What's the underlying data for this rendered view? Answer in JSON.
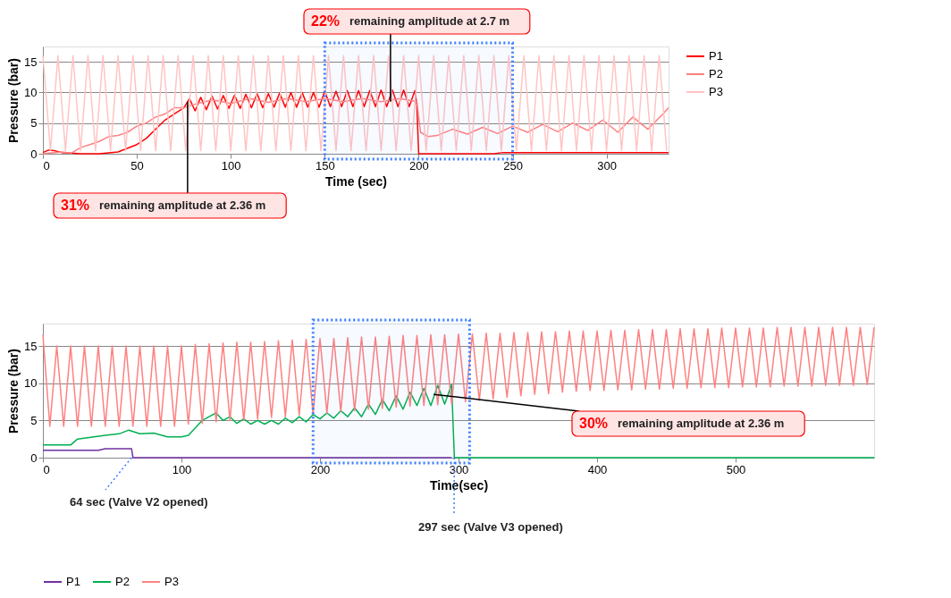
{
  "chart_data": [
    {
      "type": "line",
      "xlabel": "Time (sec)",
      "ylabel": "Pressure (bar)",
      "xlim": [
        0,
        333
      ],
      "ylim": [
        0,
        17.5
      ],
      "xticks": [
        0,
        50,
        100,
        150,
        200,
        250,
        300
      ],
      "yticks": [
        0,
        5,
        10,
        15
      ],
      "grid": "y",
      "legend": "right",
      "series": [
        {
          "name": "P1",
          "color": "#ff0000",
          "x": [
            0,
            3,
            6,
            10,
            15,
            20,
            30,
            40,
            50,
            55,
            60,
            65,
            70,
            75,
            78,
            81,
            84,
            87,
            90,
            93,
            96,
            99,
            102,
            105,
            108,
            111,
            114,
            117,
            120,
            123,
            126,
            129,
            132,
            135,
            138,
            141,
            144,
            147,
            150,
            153,
            156,
            159,
            162,
            165,
            168,
            171,
            174,
            177,
            180,
            183,
            186,
            189,
            192,
            195,
            198,
            199,
            200,
            240,
            245,
            333
          ],
          "values": [
            0.2,
            0.6,
            0.5,
            0.2,
            0.1,
            0,
            0,
            0.3,
            1.5,
            2.5,
            4,
            5.5,
            6.5,
            7.5,
            9,
            7,
            9.2,
            7.2,
            9.4,
            7.3,
            9.5,
            7.4,
            9.6,
            7.4,
            9.7,
            7.5,
            9.8,
            7.5,
            9.8,
            7.6,
            9.9,
            7.6,
            10,
            7.6,
            10,
            7.6,
            10,
            7.6,
            10.2,
            7.7,
            10.2,
            7.7,
            10.3,
            7.7,
            10.3,
            7.7,
            10.3,
            7.7,
            10.4,
            7.7,
            10.4,
            7.7,
            10.4,
            7.7,
            10.3,
            8,
            0,
            0,
            0.2,
            0.2
          ]
        },
        {
          "name": "P2",
          "color": "#ff8080",
          "x": [
            0,
            10,
            15,
            20,
            25,
            30,
            35,
            40,
            45,
            50,
            55,
            60,
            65,
            70,
            75,
            80,
            90,
            100,
            110,
            120,
            130,
            140,
            150,
            160,
            170,
            180,
            190,
            199,
            201,
            205,
            210,
            218,
            226,
            234,
            242,
            250,
            258,
            266,
            274,
            282,
            290,
            298,
            306,
            314,
            322,
            330,
            333
          ],
          "values": [
            0,
            0.3,
            0.1,
            1,
            1.5,
            2,
            2.8,
            3,
            3.5,
            4.5,
            5,
            6,
            6.5,
            7.5,
            7.5,
            8,
            8.8,
            8.2,
            9,
            8.4,
            9,
            8.5,
            9,
            8.5,
            9,
            8.5,
            9,
            8.5,
            3.5,
            2.8,
            3,
            4,
            3.2,
            4.3,
            3.3,
            4.5,
            3.5,
            4.8,
            3.6,
            5,
            3.8,
            5.5,
            3.5,
            6,
            4,
            6.5,
            7.5
          ]
        },
        {
          "name": "P3",
          "color": "#ffc4c4",
          "x": [
            0,
            4,
            8,
            12,
            16,
            20,
            24,
            28,
            32,
            36,
            40,
            44,
            48,
            52,
            56,
            60,
            64,
            68,
            72,
            76,
            80,
            84,
            88,
            92,
            96,
            100,
            104,
            108,
            112,
            116,
            120,
            124,
            128,
            132,
            136,
            140,
            144,
            148,
            152,
            156,
            160,
            164,
            168,
            172,
            176,
            180,
            184,
            188,
            192,
            196,
            200,
            204,
            208,
            212,
            216,
            220,
            224,
            228,
            232,
            236,
            240,
            244,
            248,
            252,
            256,
            260,
            264,
            268,
            272,
            276,
            280,
            284,
            288,
            292,
            296,
            300,
            304,
            308,
            312,
            316,
            320,
            324,
            328,
            332
          ],
          "values": [
            16,
            0.5,
            16,
            0.5,
            16,
            0.5,
            16,
            0.5,
            16,
            0.5,
            16,
            0.5,
            16,
            0.5,
            16,
            0.5,
            16,
            0.5,
            16,
            0.5,
            16,
            0.5,
            16,
            0.5,
            16,
            0.5,
            16,
            0.5,
            16,
            0.5,
            16,
            0.5,
            16,
            0.5,
            16,
            0.5,
            16,
            0.5,
            16,
            0.5,
            16,
            0.5,
            16,
            0.5,
            16,
            0.5,
            16,
            0.5,
            16,
            0.5,
            16,
            0.5,
            16,
            0.5,
            16,
            0.5,
            16,
            0.5,
            16,
            0.5,
            16,
            0.5,
            16,
            0.5,
            16,
            0.5,
            16,
            0.5,
            16,
            0.5,
            16,
            0.5,
            16,
            0.5,
            16,
            0.5,
            16,
            0.5,
            16,
            0.5,
            16,
            0.5,
            16,
            0.5
          ]
        }
      ],
      "bands": [
        {
          "axis": "x",
          "from": 150,
          "to": 250,
          "label": null,
          "color": "#3a7dff"
        }
      ],
      "annotations": [
        {
          "text": "31% remaining amplitude at 2.36 m",
          "x": 77,
          "y": 8.5
        },
        {
          "text": "22% remaining amplitude at 2.7 m",
          "x": 185,
          "y": 8.5
        }
      ]
    },
    {
      "type": "line",
      "xlabel": "Time(sec)",
      "ylabel": "Pressure (bar)",
      "xlim": [
        0,
        600
      ],
      "ylim": [
        0,
        18
      ],
      "xticks": [
        0,
        100,
        200,
        300,
        400,
        500
      ],
      "yticks": [
        0,
        5,
        10,
        15
      ],
      "grid": "y",
      "legend": "bottom",
      "series": [
        {
          "name": "P1",
          "color": "#7030a0",
          "x": [
            0,
            40,
            45,
            64,
            65,
            295
          ],
          "values": [
            1,
            1,
            1.2,
            1.2,
            0,
            0
          ]
        },
        {
          "name": "P2",
          "color": "#00b050",
          "x": [
            0,
            20,
            25,
            45,
            55,
            62,
            70,
            80,
            90,
            100,
            105,
            110,
            115,
            120,
            125,
            130,
            135,
            140,
            145,
            150,
            155,
            160,
            165,
            170,
            175,
            180,
            185,
            190,
            195,
            200,
            205,
            210,
            215,
            220,
            225,
            230,
            235,
            240,
            245,
            250,
            255,
            260,
            265,
            270,
            275,
            280,
            285,
            290,
            295,
            297,
            600
          ],
          "values": [
            1.7,
            1.7,
            2.5,
            3,
            3.2,
            3.7,
            3.2,
            3.3,
            2.8,
            2.8,
            3,
            4,
            5,
            5.5,
            6,
            5,
            5.5,
            4.6,
            5.2,
            4.5,
            5,
            4.5,
            5,
            4.5,
            5.3,
            4.7,
            5.5,
            4.8,
            5.8,
            5.2,
            6,
            5.3,
            6.3,
            5.5,
            6.7,
            5.5,
            7.2,
            5.8,
            7.8,
            6.3,
            8.3,
            6.5,
            8.8,
            7,
            9.3,
            7,
            9.7,
            7.2,
            9.8,
            0,
            0
          ]
        },
        {
          "name": "P3",
          "color": "#ff8080",
          "x": [
            0,
            5,
            10,
            15,
            20,
            25,
            30,
            35,
            40,
            45,
            50,
            55,
            60,
            65,
            70,
            75,
            80,
            85,
            90,
            95,
            100,
            105,
            110,
            115,
            120,
            125,
            130,
            135,
            140,
            145,
            150,
            155,
            160,
            165,
            170,
            175,
            180,
            185,
            190,
            195,
            200,
            205,
            210,
            215,
            220,
            225,
            230,
            235,
            240,
            245,
            250,
            255,
            260,
            265,
            270,
            275,
            280,
            285,
            290,
            295,
            300,
            305,
            310,
            315,
            320,
            325,
            330,
            335,
            340,
            345,
            350,
            355,
            360,
            365,
            370,
            375,
            380,
            385,
            390,
            395,
            400,
            405,
            410,
            415,
            420,
            425,
            430,
            435,
            440,
            445,
            450,
            455,
            460,
            465,
            470,
            475,
            480,
            485,
            490,
            495,
            500,
            505,
            510,
            515,
            520,
            525,
            530,
            535,
            540,
            545,
            550,
            555,
            560,
            565,
            570,
            575,
            580,
            585,
            590,
            595,
            600
          ],
          "values": [
            16.5,
            4.2,
            15,
            4.2,
            15,
            4.2,
            15,
            4.2,
            15,
            4.2,
            15,
            4.2,
            15,
            4.2,
            15,
            4.2,
            15,
            4.2,
            15,
            4.2,
            15,
            4.5,
            15.2,
            4.6,
            15.3,
            4.8,
            15.4,
            5,
            15.5,
            5,
            15.5,
            5.2,
            15.6,
            5.4,
            15.7,
            5.5,
            15.8,
            5.7,
            15.9,
            5.9,
            16,
            6,
            16,
            6.2,
            16.1,
            6.3,
            16.2,
            6.5,
            16.2,
            6.6,
            16.3,
            6.8,
            16.4,
            6.9,
            16.4,
            7,
            16.5,
            7.1,
            16.5,
            7.2,
            16.6,
            7.5,
            16.6,
            7.7,
            16.7,
            7.9,
            16.7,
            8.1,
            16.8,
            8.3,
            16.8,
            8.5,
            16.9,
            8.6,
            16.9,
            8.8,
            17,
            8.9,
            17,
            9,
            17,
            9,
            17.1,
            9.1,
            17.1,
            9.1,
            17.2,
            9.2,
            17.2,
            9.2,
            17.2,
            9.3,
            17.3,
            9.3,
            17.3,
            9.4,
            17.3,
            9.4,
            17.4,
            9.4,
            17.4,
            9.5,
            17.4,
            9.5,
            17.4,
            9.5,
            17.5,
            9.6,
            17.5,
            9.6,
            17.5,
            9.6,
            17.5,
            9.7,
            17.5,
            9.7,
            17.5,
            9.7,
            17.5,
            9.8,
            17.5
          ]
        }
      ],
      "bands": [
        {
          "axis": "x",
          "from": 195,
          "to": 308,
          "label": null,
          "color": "#3a7dff"
        }
      ],
      "annotations": [
        {
          "text": "30% remaining amplitude at 2.36 m",
          "x": 282,
          "y": 8.5
        },
        {
          "text": "64 sec (Valve V2 opened)",
          "x": 64,
          "y": 0
        },
        {
          "text": "297 sec (Valve V3 opened)",
          "x": 297,
          "y": 0
        }
      ]
    }
  ]
}
